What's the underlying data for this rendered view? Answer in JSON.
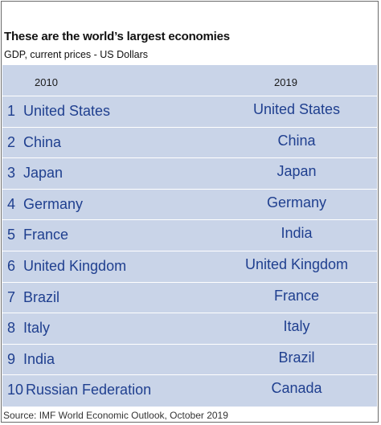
{
  "header": {
    "title": "These are the world’s largest economies",
    "subtitle": "GDP, current prices - US Dollars"
  },
  "chart_data": {
    "type": "table",
    "columns": [
      "2010",
      "2019"
    ],
    "rows": [
      {
        "rank": "1",
        "y2010": "United States",
        "y2019": "United States"
      },
      {
        "rank": "2",
        "y2010": "China",
        "y2019": "China"
      },
      {
        "rank": "3",
        "y2010": "Japan",
        "y2019": "Japan"
      },
      {
        "rank": "4",
        "y2010": "Germany",
        "y2019": "Germany"
      },
      {
        "rank": "5",
        "y2010": "France",
        "y2019": "India"
      },
      {
        "rank": "6",
        "y2010": "United Kingdom",
        "y2019": "United Kingdom"
      },
      {
        "rank": "7",
        "y2010": "Brazil",
        "y2019": "France"
      },
      {
        "rank": "8",
        "y2010": "Italy",
        "y2019": "Italy"
      },
      {
        "rank": "9",
        "y2010": "India",
        "y2019": "Brazil"
      },
      {
        "rank": "10",
        "y2010": "Russian Federation",
        "y2019": "Canada"
      }
    ]
  },
  "footer": {
    "source": "Source: IMF World Economic Outlook, October 2019"
  },
  "colors": {
    "panel": "#c9d4e8",
    "text_accent": "#1f3f8f"
  }
}
